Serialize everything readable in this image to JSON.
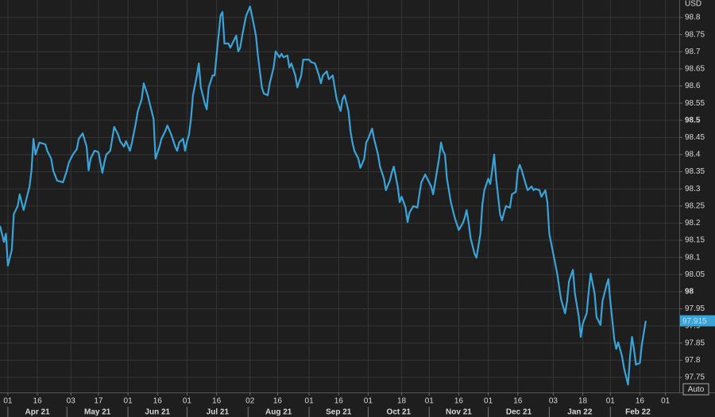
{
  "chart_data": {
    "type": "line",
    "y_axis_label": "USD",
    "color": "#3aa3d8",
    "grid": true,
    "x": [
      "2021-03-28",
      "2021-03-30",
      "2021-03-31",
      "2021-04-01",
      "2021-04-03",
      "2021-04-04",
      "2021-04-06",
      "2021-04-07",
      "2021-04-09",
      "2021-04-11",
      "2021-04-12",
      "2021-04-13",
      "2021-04-14",
      "2021-04-15",
      "2021-04-17",
      "2021-04-20",
      "2021-04-21",
      "2021-04-23",
      "2021-04-24",
      "2021-04-26",
      "2021-04-29",
      "2021-05-01",
      "2021-05-02",
      "2021-05-04",
      "2021-05-06",
      "2021-05-07",
      "2021-05-09",
      "2021-05-11",
      "2021-05-12",
      "2021-05-13",
      "2021-05-15",
      "2021-05-17",
      "2021-05-19",
      "2021-05-20",
      "2021-05-21",
      "2021-05-23",
      "2021-05-24",
      "2021-05-25",
      "2021-05-27",
      "2021-05-28",
      "2021-05-30",
      "2021-05-31",
      "2021-06-02",
      "2021-06-03",
      "2021-06-05",
      "2021-06-06",
      "2021-06-08",
      "2021-06-09",
      "2021-06-11",
      "2021-06-13",
      "2021-06-14",
      "2021-06-15",
      "2021-06-17",
      "2021-06-18",
      "2021-06-20",
      "2021-06-21",
      "2021-06-23",
      "2021-06-25",
      "2021-06-26",
      "2021-06-27",
      "2021-06-29",
      "2021-06-30",
      "2021-07-01",
      "2021-07-02",
      "2021-07-03",
      "2021-07-04",
      "2021-07-06",
      "2021-07-07",
      "2021-07-08",
      "2021-07-10",
      "2021-07-11",
      "2021-07-12",
      "2021-07-14",
      "2021-07-15",
      "2021-07-16",
      "2021-07-18",
      "2021-07-19",
      "2021-07-20",
      "2021-07-22",
      "2021-07-23",
      "2021-07-24",
      "2021-07-26",
      "2021-07-27",
      "2021-07-28",
      "2021-07-29",
      "2021-07-31",
      "2021-08-02",
      "2021-08-03",
      "2021-08-05",
      "2021-08-06",
      "2021-08-08",
      "2021-08-09",
      "2021-08-11",
      "2021-08-12",
      "2021-08-14",
      "2021-08-15",
      "2021-08-17",
      "2021-08-18",
      "2021-08-19",
      "2021-08-21",
      "2021-08-22",
      "2021-08-23",
      "2021-08-25",
      "2021-08-26",
      "2021-08-28",
      "2021-08-29",
      "2021-09-01",
      "2021-09-02",
      "2021-09-04",
      "2021-09-06",
      "2021-09-07",
      "2021-09-08",
      "2021-09-10",
      "2021-09-11",
      "2021-09-13",
      "2021-09-14",
      "2021-09-15",
      "2021-09-17",
      "2021-09-18",
      "2021-09-19",
      "2021-09-21",
      "2021-09-22",
      "2021-09-23",
      "2021-09-24",
      "2021-09-26",
      "2021-09-27",
      "2021-09-29",
      "2021-09-30",
      "2021-10-01",
      "2021-10-03",
      "2021-10-04",
      "2021-10-06",
      "2021-10-07",
      "2021-10-09",
      "2021-10-10",
      "2021-10-12",
      "2021-10-13",
      "2021-10-14",
      "2021-10-16",
      "2021-10-17",
      "2021-10-18",
      "2021-10-20",
      "2021-10-21",
      "2021-10-22",
      "2021-10-24",
      "2021-10-26",
      "2021-10-27",
      "2021-10-28",
      "2021-10-30",
      "2021-10-31",
      "2021-11-02",
      "2021-11-03",
      "2021-11-04",
      "2021-11-06",
      "2021-11-07",
      "2021-11-08",
      "2021-11-09",
      "2021-11-10",
      "2021-11-12",
      "2021-11-13",
      "2021-11-14",
      "2021-11-16",
      "2021-11-18",
      "2021-11-19",
      "2021-11-20",
      "2021-11-21",
      "2021-11-22",
      "2021-11-24",
      "2021-11-25",
      "2021-11-27",
      "2021-11-28",
      "2021-11-29",
      "2021-12-01",
      "2021-12-02",
      "2021-12-03",
      "2021-12-04",
      "2021-12-05",
      "2021-12-07",
      "2021-12-08",
      "2021-12-09",
      "2021-12-10",
      "2021-12-12",
      "2021-12-13",
      "2021-12-15",
      "2021-12-16",
      "2021-12-17",
      "2021-12-18",
      "2021-12-20",
      "2021-12-21",
      "2021-12-23",
      "2021-12-24",
      "2021-12-25",
      "2021-12-27",
      "2021-12-28",
      "2021-12-30",
      "2021-12-31",
      "2022-01-01",
      "2022-01-03",
      "2022-01-05",
      "2022-01-06",
      "2022-01-07",
      "2022-01-09",
      "2022-01-10",
      "2022-01-11",
      "2022-01-13",
      "2022-01-14",
      "2022-01-16",
      "2022-01-17",
      "2022-01-18",
      "2022-01-20",
      "2022-01-21",
      "2022-01-22",
      "2022-01-24",
      "2022-01-25",
      "2022-01-27",
      "2022-01-28",
      "2022-01-30",
      "2022-01-31",
      "2022-02-01",
      "2022-02-03",
      "2022-02-04",
      "2022-02-05",
      "2022-02-07",
      "2022-02-08",
      "2022-02-10",
      "2022-02-11",
      "2022-02-12",
      "2022-02-13",
      "2022-02-14",
      "2022-02-16",
      "2022-02-17",
      "2022-02-19"
    ],
    "values": [
      98.192,
      98.145,
      98.169,
      98.076,
      98.122,
      98.226,
      98.25,
      98.284,
      98.238,
      98.284,
      98.307,
      98.354,
      98.446,
      98.4,
      98.435,
      98.43,
      98.411,
      98.388,
      98.354,
      98.324,
      98.319,
      98.354,
      98.377,
      98.4,
      98.416,
      98.446,
      98.462,
      98.423,
      98.354,
      98.388,
      98.411,
      98.407,
      98.347,
      98.377,
      98.4,
      98.411,
      98.446,
      98.481,
      98.458,
      98.439,
      98.423,
      98.439,
      98.411,
      98.435,
      98.492,
      98.527,
      98.562,
      98.608,
      98.573,
      98.527,
      98.504,
      98.388,
      98.423,
      98.446,
      98.469,
      98.485,
      98.458,
      98.423,
      98.411,
      98.435,
      98.446,
      98.411,
      98.439,
      98.458,
      98.504,
      98.573,
      98.631,
      98.666,
      98.596,
      98.55,
      98.532,
      98.596,
      98.631,
      98.631,
      98.689,
      98.805,
      98.816,
      98.724,
      98.724,
      98.712,
      98.724,
      98.747,
      98.701,
      98.712,
      98.747,
      98.805,
      98.832,
      98.805,
      98.747,
      98.689,
      98.596,
      98.578,
      98.573,
      98.608,
      98.654,
      98.701,
      98.684,
      98.694,
      98.684,
      98.689,
      98.654,
      98.666,
      98.631,
      98.596,
      98.631,
      98.677,
      98.677,
      98.67,
      98.666,
      98.631,
      98.608,
      98.631,
      98.643,
      98.62,
      98.631,
      98.596,
      98.562,
      98.527,
      98.562,
      98.573,
      98.527,
      98.469,
      98.435,
      98.411,
      98.388,
      98.361,
      98.388,
      98.435,
      98.446,
      98.476,
      98.446,
      98.4,
      98.365,
      98.33,
      98.296,
      98.324,
      98.347,
      98.365,
      98.307,
      98.261,
      98.277,
      98.245,
      98.203,
      98.231,
      98.25,
      98.245,
      98.284,
      98.319,
      98.342,
      98.33,
      98.307,
      98.284,
      98.319,
      98.388,
      98.435,
      98.411,
      98.4,
      98.33,
      98.261,
      98.238,
      98.215,
      98.18,
      98.199,
      98.215,
      98.238,
      98.203,
      98.157,
      98.111,
      98.099,
      98.169,
      98.254,
      98.296,
      98.33,
      98.314,
      98.354,
      98.4,
      98.33,
      98.226,
      98.208,
      98.231,
      98.25,
      98.245,
      98.284,
      98.291,
      98.354,
      98.37,
      98.354,
      98.314,
      98.296,
      98.307,
      98.296,
      98.3,
      98.296,
      98.277,
      98.296,
      98.261,
      98.169,
      98.111,
      98.053,
      98.014,
      97.977,
      97.937,
      97.972,
      98.03,
      98.064,
      97.995,
      97.926,
      97.868,
      97.907,
      97.937,
      98,
      98.053,
      97.995,
      97.926,
      97.903,
      97.972,
      98.018,
      98.037,
      97.972,
      97.861,
      97.833,
      97.852,
      97.81,
      97.775,
      97.729,
      97.81,
      97.868,
      97.833,
      97.787,
      97.792,
      97.845,
      97.915
    ],
    "xlim": [
      "2021-03-28",
      "2022-03-08"
    ],
    "xticks": [
      {
        "value": "2021-04-01",
        "label": "01"
      },
      {
        "value": "2021-04-16",
        "label": "16"
      },
      {
        "value": "2021-05-03",
        "label": "03"
      },
      {
        "value": "2021-05-17",
        "label": "17"
      },
      {
        "value": "2021-06-01",
        "label": "01"
      },
      {
        "value": "2021-06-16",
        "label": "16"
      },
      {
        "value": "2021-07-01",
        "label": "01"
      },
      {
        "value": "2021-07-16",
        "label": "16"
      },
      {
        "value": "2021-08-02",
        "label": "02"
      },
      {
        "value": "2021-08-16",
        "label": "16"
      },
      {
        "value": "2021-09-01",
        "label": "01"
      },
      {
        "value": "2021-09-16",
        "label": "16"
      },
      {
        "value": "2021-10-01",
        "label": "01"
      },
      {
        "value": "2021-10-18",
        "label": "18"
      },
      {
        "value": "2021-11-01",
        "label": "01"
      },
      {
        "value": "2021-11-16",
        "label": "16"
      },
      {
        "value": "2021-12-01",
        "label": "01"
      },
      {
        "value": "2021-12-16",
        "label": "16"
      },
      {
        "value": "2022-01-03",
        "label": "03"
      },
      {
        "value": "2022-01-18",
        "label": "18"
      },
      {
        "value": "2022-02-01",
        "label": "01"
      },
      {
        "value": "2022-02-16",
        "label": "16"
      },
      {
        "value": "2022-03-01",
        "label": "01"
      }
    ],
    "months": [
      {
        "value": "2021-04",
        "label": "Apr 21"
      },
      {
        "value": "2021-05",
        "label": "May 21"
      },
      {
        "value": "2021-06",
        "label": "Jun 21"
      },
      {
        "value": "2021-07",
        "label": "Jul 21"
      },
      {
        "value": "2021-08",
        "label": "Aug 21"
      },
      {
        "value": "2021-09",
        "label": "Sep 21"
      },
      {
        "value": "2021-10",
        "label": "Oct 21"
      },
      {
        "value": "2021-11",
        "label": "Nov 21"
      },
      {
        "value": "2021-12",
        "label": "Dec 21"
      },
      {
        "value": "2022-01",
        "label": "Jan 22"
      },
      {
        "value": "2022-02",
        "label": "Feb 22"
      }
    ],
    "ylim": [
      97.706,
      98.851
    ],
    "yticks": [
      97.75,
      97.8,
      97.85,
      97.9,
      97.95,
      98,
      98.05,
      98.1,
      98.15,
      98.2,
      98.25,
      98.3,
      98.35,
      98.4,
      98.45,
      98.5,
      98.55,
      98.6,
      98.65,
      98.7,
      98.75,
      98.8
    ]
  },
  "controls": {
    "auto": "Auto"
  }
}
